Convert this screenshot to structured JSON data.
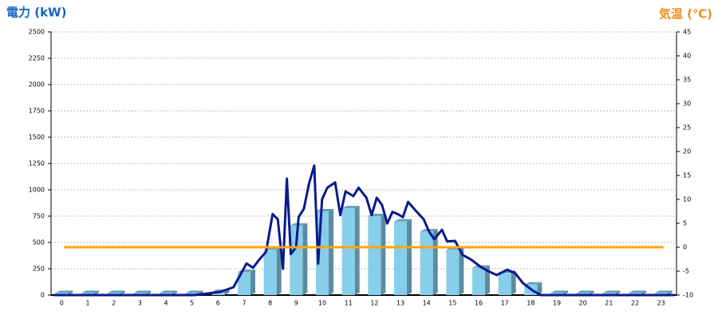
{
  "chart_data": {
    "type": "combo",
    "y_label": "電力 (kW)",
    "y2_label": "気温 (℃)",
    "y_label_color": "#1565c0",
    "y2_label_color": "#f08c1e",
    "categories": [
      "0",
      "1",
      "2",
      "3",
      "4",
      "5",
      "6",
      "7",
      "8",
      "9",
      "10",
      "11",
      "12",
      "13",
      "14",
      "15",
      "16",
      "17",
      "18",
      "19",
      "20",
      "21",
      "22",
      "23"
    ],
    "ylim": [
      0,
      2500
    ],
    "yticks": [
      0,
      250,
      500,
      750,
      1000,
      1250,
      1500,
      1750,
      2000,
      2250,
      2500
    ],
    "y2lim": [
      -10,
      45
    ],
    "y2ticks": [
      -10,
      -5,
      0,
      5,
      10,
      15,
      20,
      25,
      30,
      35,
      40,
      45
    ],
    "grid": true,
    "series": [
      {
        "type": "bar",
        "color": "#87ceeb",
        "values": [
          20,
          20,
          20,
          20,
          20,
          20,
          30,
          220,
          430,
          660,
          795,
          825,
          750,
          700,
          605,
          430,
          260,
          210,
          100,
          20,
          20,
          20,
          20,
          20
        ]
      },
      {
        "type": "line",
        "color": "#0a1a8c",
        "x": [
          -0.4,
          5,
          6,
          6.5,
          7,
          7.25,
          7.5,
          7.75,
          8,
          8.2,
          8.4,
          8.55,
          8.7,
          8.9,
          9,
          9.2,
          9.4,
          9.6,
          9.75,
          9.9,
          10.1,
          10.4,
          10.6,
          10.8,
          11.1,
          11.3,
          11.6,
          11.8,
          12,
          12.2,
          12.4,
          12.6,
          12.8,
          13,
          13.2,
          13.5,
          13.8,
          14,
          14.2,
          14.5,
          14.7,
          15,
          15.3,
          15.6,
          16,
          16.3,
          16.6,
          17,
          17.3,
          17.6,
          18,
          18.3,
          23.4
        ],
        "values": [
          0,
          0,
          30,
          75,
          300,
          260,
          340,
          410,
          770,
          720,
          250,
          1105,
          390,
          455,
          740,
          820,
          1060,
          1230,
          300,
          910,
          1020,
          1070,
          760,
          985,
          940,
          1020,
          925,
          760,
          925,
          855,
          680,
          790,
          770,
          740,
          885,
          800,
          720,
          605,
          530,
          620,
          510,
          515,
          380,
          340,
          265,
          225,
          190,
          240,
          210,
          115,
          40,
          0,
          0
        ]
      },
      {
        "type": "line",
        "axis": "y2",
        "color": "#ffa500",
        "x": [
          0,
          23
        ],
        "values": [
          0,
          0
        ]
      }
    ]
  }
}
